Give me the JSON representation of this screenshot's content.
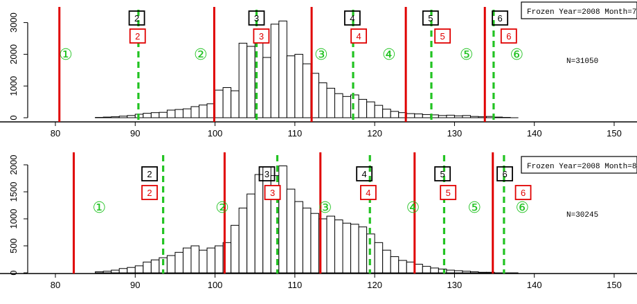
{
  "chart_data": [
    {
      "type": "bar",
      "legend": "Frozen Year=2008 Month=7",
      "annotation": "N=31050",
      "xlim": [
        80,
        150
      ],
      "ylim": [
        0,
        3100
      ],
      "xticks": [
        "80",
        "90",
        "100",
        "110",
        "120",
        "130",
        "140",
        "150"
      ],
      "yticks": [
        "0",
        "1000",
        "2000",
        "3000"
      ],
      "bin_start": 80,
      "bin_width": 1,
      "values": [
        0,
        0,
        0,
        0,
        0,
        10,
        20,
        30,
        50,
        70,
        110,
        140,
        160,
        170,
        240,
        260,
        280,
        350,
        400,
        440,
        870,
        950,
        850,
        2350,
        2250,
        2750,
        1900,
        2950,
        3050,
        1950,
        2000,
        1700,
        1400,
        1100,
        930,
        760,
        670,
        720,
        580,
        500,
        390,
        270,
        200,
        160,
        130,
        120,
        100,
        90,
        70,
        80,
        60,
        70,
        40,
        30,
        40,
        20,
        10,
        0,
        0,
        0,
        0,
        0,
        0,
        0,
        0,
        0,
        0,
        0,
        0,
        0
      ],
      "red_lines": [
        80.5,
        99.9,
        112.1,
        123.9,
        133.8
      ],
      "green_lines": [
        90.4,
        105.2,
        117.3,
        127.1,
        134.9
      ],
      "green_labels": [
        {
          "x": 81.3,
          "text": "1"
        },
        {
          "x": 98.2,
          "text": "2"
        },
        {
          "x": 113.3,
          "text": "3"
        },
        {
          "x": 121.8,
          "text": "4"
        },
        {
          "x": 131.5,
          "text": "5"
        },
        {
          "x": 137.8,
          "text": "6"
        }
      ],
      "black_boxes": [
        {
          "x": 90.2,
          "text": "2"
        },
        {
          "x": 105.2,
          "text": "3"
        },
        {
          "x": 117.2,
          "text": "4"
        },
        {
          "x": 127.0,
          "text": "5"
        },
        {
          "x": 135.7,
          "text": "6"
        }
      ],
      "red_boxes": [
        {
          "x": 90.3,
          "text": "2"
        },
        {
          "x": 105.8,
          "text": "3"
        },
        {
          "x": 118.0,
          "text": "4"
        },
        {
          "x": 128.5,
          "text": "5"
        },
        {
          "x": 136.8,
          "text": "6"
        }
      ]
    },
    {
      "type": "bar",
      "legend": "Frozen Year=2008 Month=8",
      "annotation": "N=30245",
      "xlim": [
        80,
        150
      ],
      "ylim": [
        0,
        2000
      ],
      "xticks": [
        "80",
        "90",
        "100",
        "110",
        "120",
        "130",
        "140",
        "150"
      ],
      "yticks": [
        "0",
        "500",
        "1000",
        "1500",
        "2000"
      ],
      "bin_start": 80,
      "bin_width": 1,
      "values": [
        0,
        0,
        0,
        0,
        0,
        20,
        30,
        50,
        80,
        100,
        130,
        200,
        240,
        280,
        320,
        380,
        460,
        500,
        420,
        460,
        500,
        560,
        880,
        1200,
        1460,
        1820,
        1960,
        1800,
        1980,
        1550,
        1320,
        1200,
        1100,
        1000,
        1050,
        980,
        920,
        900,
        850,
        720,
        560,
        420,
        300,
        230,
        200,
        160,
        120,
        90,
        70,
        50,
        40,
        30,
        20,
        10,
        10,
        0,
        0,
        0,
        0,
        0,
        0,
        0,
        0,
        0,
        0,
        0,
        0,
        0,
        0,
        0
      ],
      "red_lines": [
        82.3,
        101.2,
        113.2,
        125.0,
        134.8
      ],
      "green_lines": [
        93.5,
        107.8,
        119.4,
        128.7,
        136.2
      ],
      "green_labels": [
        {
          "x": 85.5,
          "text": "1"
        },
        {
          "x": 100.9,
          "text": "2"
        },
        {
          "x": 113.8,
          "text": "3"
        },
        {
          "x": 124.8,
          "text": "4"
        },
        {
          "x": 132.5,
          "text": "5"
        },
        {
          "x": 138.5,
          "text": "6"
        }
      ],
      "black_boxes": [
        {
          "x": 91.8,
          "text": "2"
        },
        {
          "x": 106.5,
          "text": "3"
        },
        {
          "x": 118.7,
          "text": "4"
        },
        {
          "x": 128.5,
          "text": "5"
        },
        {
          "x": 136.3,
          "text": "6"
        }
      ],
      "red_boxes": [
        {
          "x": 91.8,
          "text": "2"
        },
        {
          "x": 107.2,
          "text": "3"
        },
        {
          "x": 119.2,
          "text": "4"
        },
        {
          "x": 129.2,
          "text": "5"
        },
        {
          "x": 138.6,
          "text": "6"
        }
      ]
    }
  ]
}
